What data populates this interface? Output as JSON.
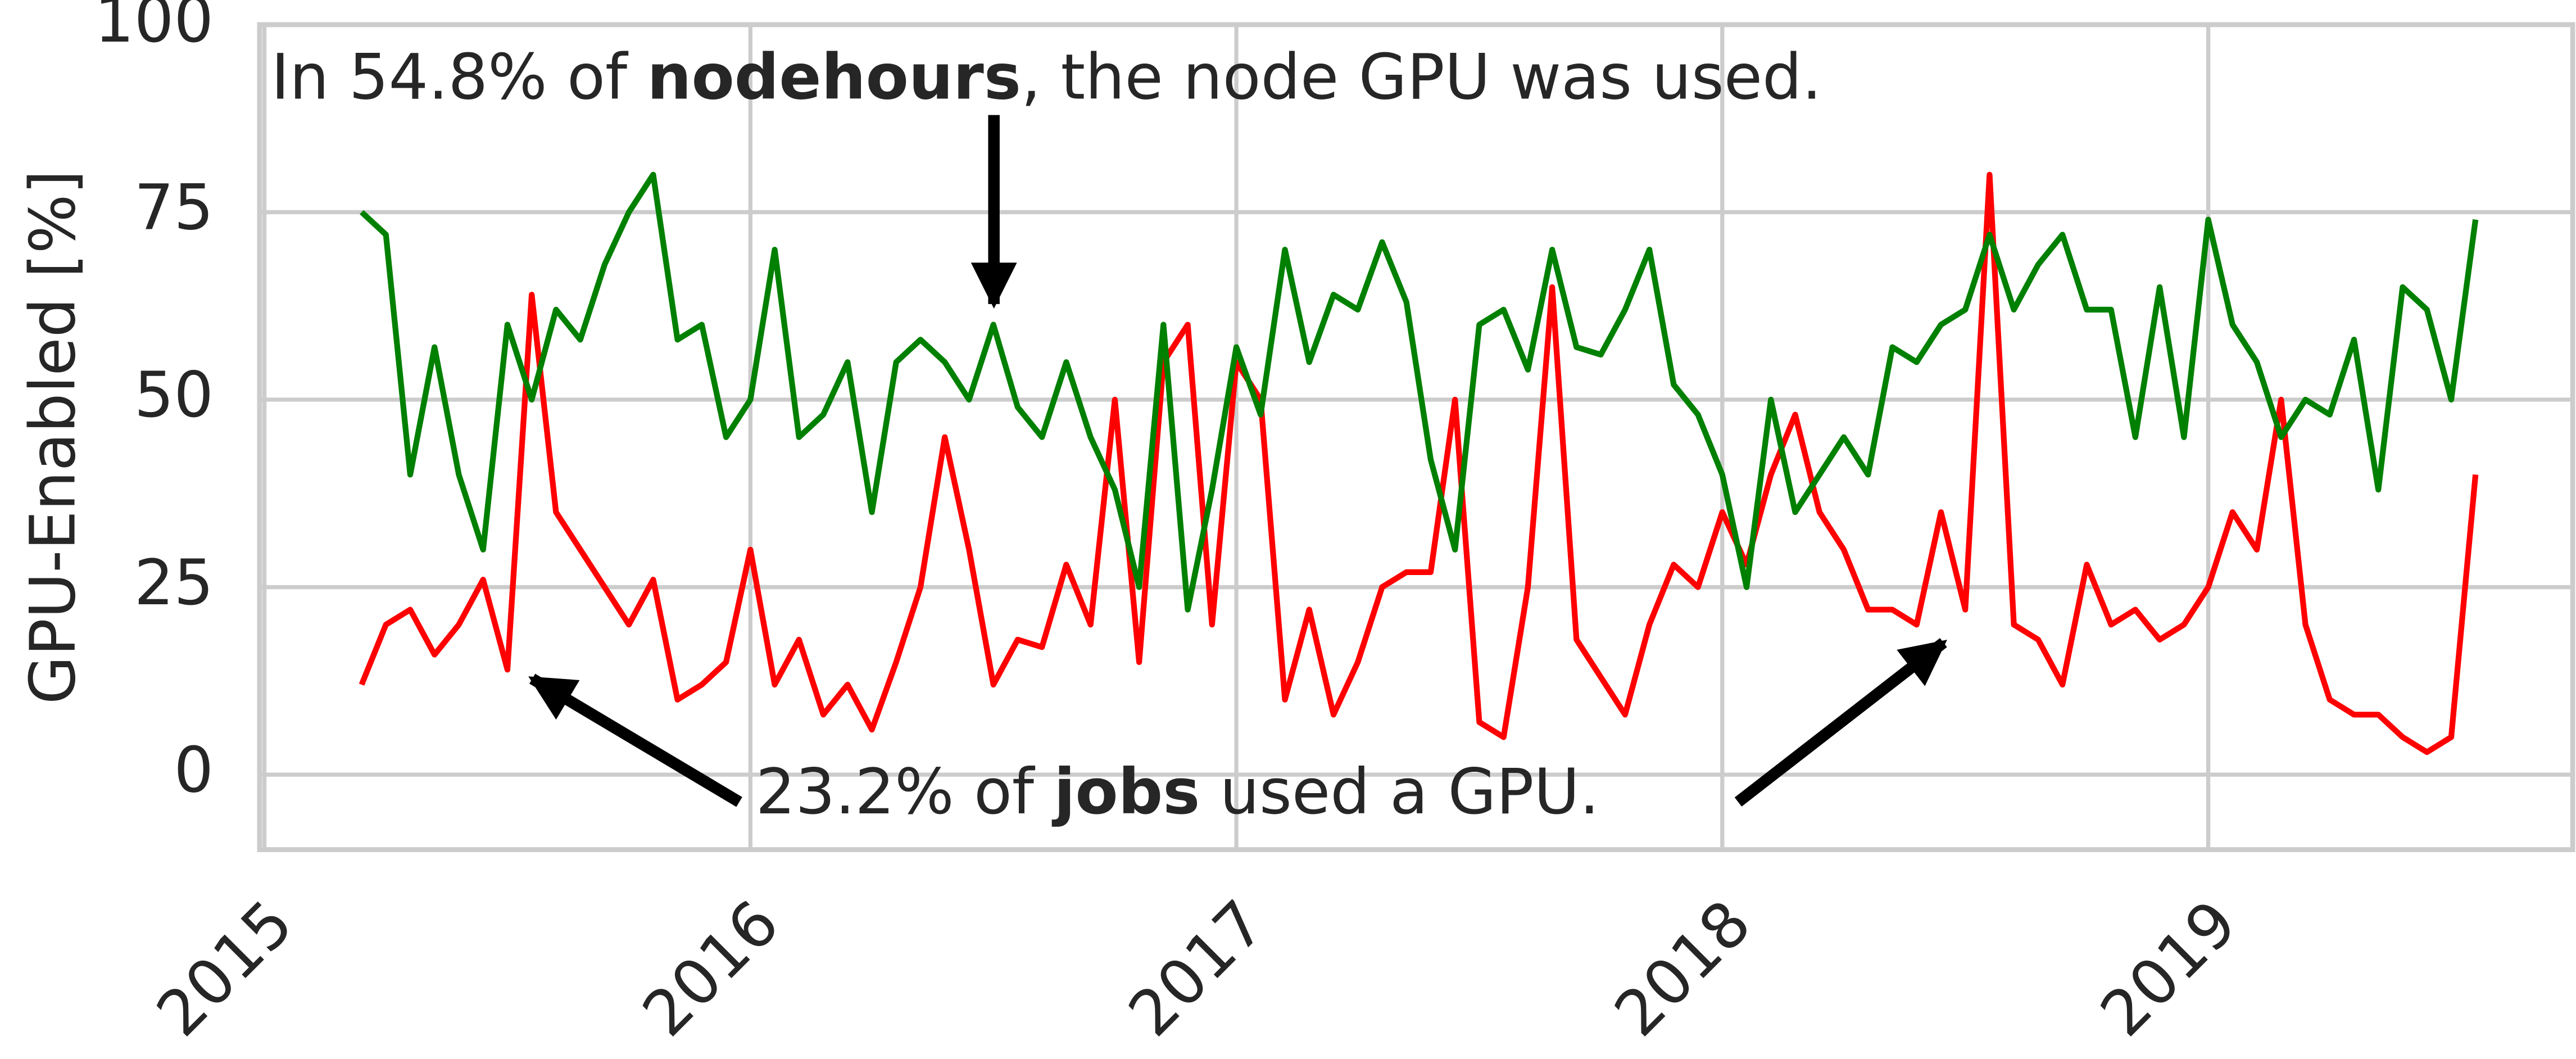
{
  "chart_data": {
    "type": "line",
    "y_label": "GPU-Enabled [%]",
    "annotations": [
      {
        "parts": [
          "In 54.8% of ",
          "nodehours",
          ", the node GPU was used."
        ]
      },
      {
        "parts": [
          "23.2% of ",
          "jobs",
          " used a GPU."
        ]
      }
    ],
    "x": [
      2015.2,
      2015.25,
      2015.3,
      2015.35,
      2015.4,
      2015.45,
      2015.5,
      2015.55,
      2015.6,
      2015.65,
      2015.7,
      2015.75,
      2015.8,
      2015.85,
      2015.9,
      2015.95,
      2016.0,
      2016.05,
      2016.1,
      2016.15,
      2016.2,
      2016.25,
      2016.3,
      2016.35,
      2016.4,
      2016.45,
      2016.5,
      2016.55,
      2016.6,
      2016.65,
      2016.7,
      2016.75,
      2016.8,
      2016.85,
      2016.9,
      2016.95,
      2017.0,
      2017.05,
      2017.1,
      2017.15,
      2017.2,
      2017.25,
      2017.3,
      2017.35,
      2017.4,
      2017.45,
      2017.5,
      2017.55,
      2017.6,
      2017.65,
      2017.7,
      2017.75,
      2017.8,
      2017.85,
      2017.9,
      2017.95,
      2018.0,
      2018.05,
      2018.1,
      2018.15,
      2018.2,
      2018.25,
      2018.3,
      2018.35,
      2018.4,
      2018.45,
      2018.5,
      2018.55,
      2018.6,
      2018.65,
      2018.7,
      2018.75,
      2018.8,
      2018.85,
      2018.9,
      2018.95,
      2019.0,
      2019.05,
      2019.1,
      2019.15,
      2019.2,
      2019.25,
      2019.3,
      2019.35,
      2019.4,
      2019.45,
      2019.5,
      2019.55
    ],
    "series": [
      {
        "color": "#008000",
        "values": [
          75,
          72,
          40,
          57,
          40,
          30,
          60,
          50,
          62,
          58,
          68,
          75,
          80,
          58,
          60,
          45,
          50,
          70,
          45,
          48,
          55,
          35,
          55,
          58,
          55,
          50,
          60,
          49,
          45,
          55,
          45,
          38,
          25,
          60,
          22,
          38,
          57,
          48,
          70,
          55,
          64,
          62,
          71,
          63,
          42,
          30,
          60,
          62,
          54,
          70,
          57,
          56,
          62,
          70,
          52,
          48,
          40,
          25,
          50,
          35,
          40,
          45,
          40,
          57,
          55,
          60,
          62,
          72,
          62,
          68,
          72,
          62,
          62,
          45,
          65,
          45,
          74,
          60,
          55,
          45,
          50,
          48,
          58,
          38,
          65,
          62,
          50,
          74
        ]
      },
      {
        "color": "#ff0000",
        "values": [
          12,
          20,
          22,
          16,
          20,
          26,
          14,
          64,
          35,
          30,
          25,
          20,
          26,
          10,
          12,
          15,
          30,
          12,
          18,
          8,
          12,
          6,
          15,
          25,
          45,
          30,
          12,
          18,
          17,
          28,
          20,
          50,
          15,
          55,
          60,
          20,
          55,
          50,
          10,
          22,
          8,
          15,
          25,
          27,
          27,
          50,
          7,
          5,
          25,
          65,
          18,
          13,
          8,
          20,
          28,
          25,
          35,
          28,
          40,
          48,
          35,
          30,
          22,
          22,
          20,
          35,
          22,
          80,
          20,
          18,
          12,
          28,
          20,
          22,
          18,
          20,
          25,
          35,
          30,
          50,
          20,
          10,
          8,
          8,
          5,
          3,
          5,
          40
        ]
      }
    ],
    "xlim": [
      2014.99,
      2019.75
    ],
    "xticks": [
      2015,
      2016,
      2017,
      2018,
      2019
    ],
    "ylim": [
      -10,
      100
    ],
    "yticks": [
      0,
      25,
      50,
      75,
      100
    ],
    "grid": true
  }
}
